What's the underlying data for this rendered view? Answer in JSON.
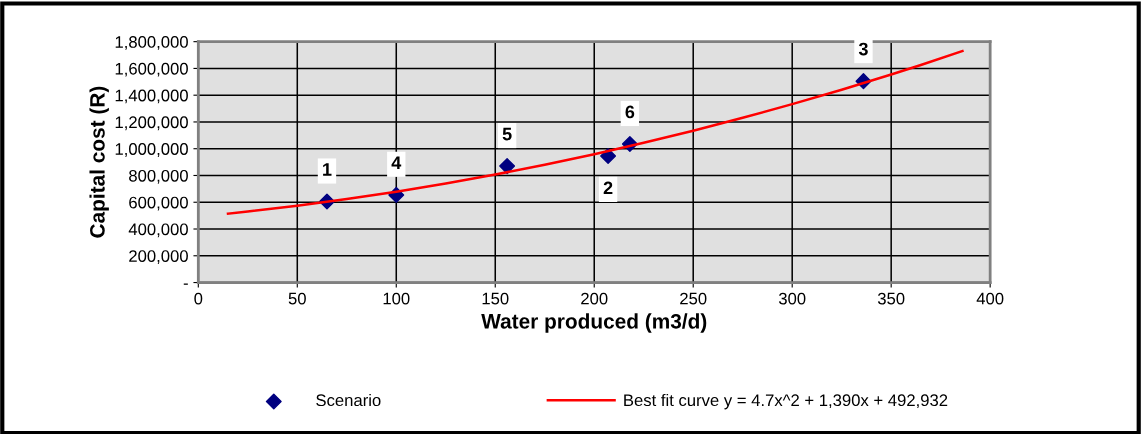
{
  "chart_data": {
    "type": "scatter",
    "xlabel": "Water produced (m3/d)",
    "ylabel": "Capital cost (R)",
    "series": [
      {
        "name": "Scenario",
        "color": "#000080",
        "marker": "diamond",
        "x": [
          65,
          207,
          336,
          100,
          156,
          218
        ],
        "values": [
          605000,
          945000,
          1505000,
          655000,
          870000,
          1035000
        ]
      },
      {
        "name": "Best fit curve y = 4.7x^2 + 1,390x + 492,932",
        "type": "line",
        "color": "#ff0000",
        "marker": "none",
        "line_style": "solid",
        "x": [
          15,
          25,
          50,
          75,
          100,
          125,
          150,
          175,
          200,
          225,
          250,
          275,
          300,
          325,
          350,
          365,
          386
        ],
        "values": [
          515000,
          531000,
          574000,
          624000,
          679000,
          740000,
          807000,
          880000,
          959000,
          1044000,
          1134000,
          1231000,
          1333000,
          1441000,
          1555000,
          1626000,
          1730000
        ]
      }
    ],
    "annotations": [
      {
        "text": "1",
        "x": 65,
        "y": 605000
      },
      {
        "text": "2",
        "x": 207,
        "y": 945000
      },
      {
        "text": "3",
        "x": 336,
        "y": 1505000
      },
      {
        "text": "4",
        "x": 100,
        "y": 655000
      },
      {
        "text": "5",
        "x": 156,
        "y": 870000
      },
      {
        "text": "6",
        "x": 218,
        "y": 1035000
      }
    ],
    "xlim": [
      0,
      400
    ],
    "xticks": [
      0,
      50,
      100,
      150,
      200,
      250,
      300,
      350,
      400
    ],
    "ylim": [
      0,
      1800000
    ],
    "yticks": [
      {
        "value": 0,
        "label": "-"
      },
      {
        "value": 200000,
        "label": "200,000"
      },
      {
        "value": 400000,
        "label": "400,000"
      },
      {
        "value": 600000,
        "label": "600,000"
      },
      {
        "value": 800000,
        "label": "800,000"
      },
      {
        "value": 1000000,
        "label": "1,000,000"
      },
      {
        "value": 1200000,
        "label": "1,200,000"
      },
      {
        "value": 1400000,
        "label": "1,400,000"
      },
      {
        "value": 1600000,
        "label": "1,600,000"
      },
      {
        "value": 1800000,
        "label": "1,800,000"
      }
    ],
    "grid": true,
    "legend": "bottom"
  }
}
